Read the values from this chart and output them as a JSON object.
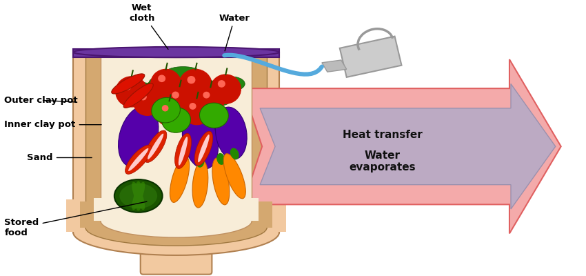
{
  "background_color": "#ffffff",
  "labels": {
    "wet_cloth": "Wet\ncloth",
    "water": "Water",
    "outer_clay_pot": "Outer clay pot",
    "inner_clay_pot": "Inner clay pot",
    "sand": "Sand",
    "stored_food": "Stored\nfood",
    "heat_transfer": "Heat transfer",
    "water_evaporates": "Water\nevaporates"
  },
  "pot_outer_color": "#F2C9A0",
  "sand_color": "#D4A870",
  "wet_cloth_color": "#6B35A0",
  "arrow_fill_color": "#F4AAAA",
  "arrow_edge_color": "#E06060",
  "arrow_inner_color": "#AAAACC",
  "water_stream_color": "#55AADD",
  "watering_can_color": "#CCCCCC",
  "label_fontsize": 9.5,
  "arrow_text_fontsize": 11
}
